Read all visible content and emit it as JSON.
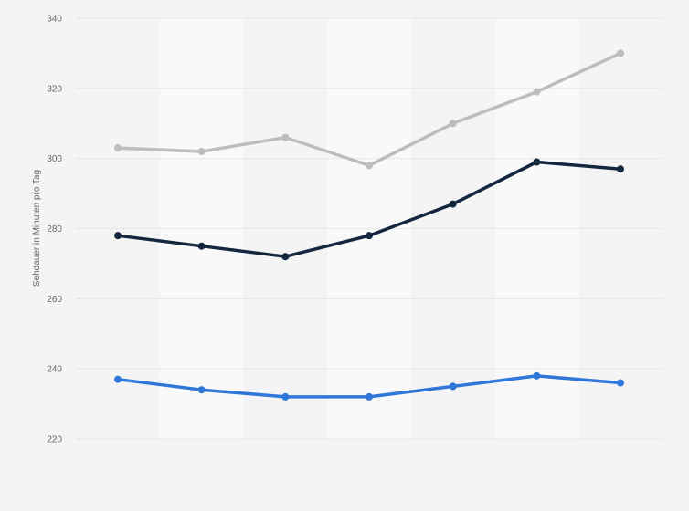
{
  "chart_data": {
    "type": "line",
    "title": "",
    "xlabel": "",
    "ylabel": "Sehdauer in Minuten pro Tag",
    "ylim": [
      220,
      340
    ],
    "yticks": [
      220,
      240,
      260,
      280,
      300,
      320,
      340
    ],
    "grid": true,
    "legend": "none",
    "x": [
      1,
      2,
      3,
      4,
      5,
      6,
      7
    ],
    "series": [
      {
        "color": "#bdbdbd",
        "values": [
          303,
          302,
          306,
          298,
          310,
          319,
          330
        ]
      },
      {
        "color": "#14273f",
        "values": [
          278,
          275,
          272,
          278,
          287,
          299,
          297
        ]
      },
      {
        "color": "#2f77d9",
        "values": [
          237,
          234,
          232,
          232,
          235,
          238,
          236
        ]
      }
    ],
    "colors": {
      "background": "#f4f4f4",
      "band": "#f9f9f9",
      "grid": "#d6d6d6",
      "text": "#666666"
    }
  }
}
